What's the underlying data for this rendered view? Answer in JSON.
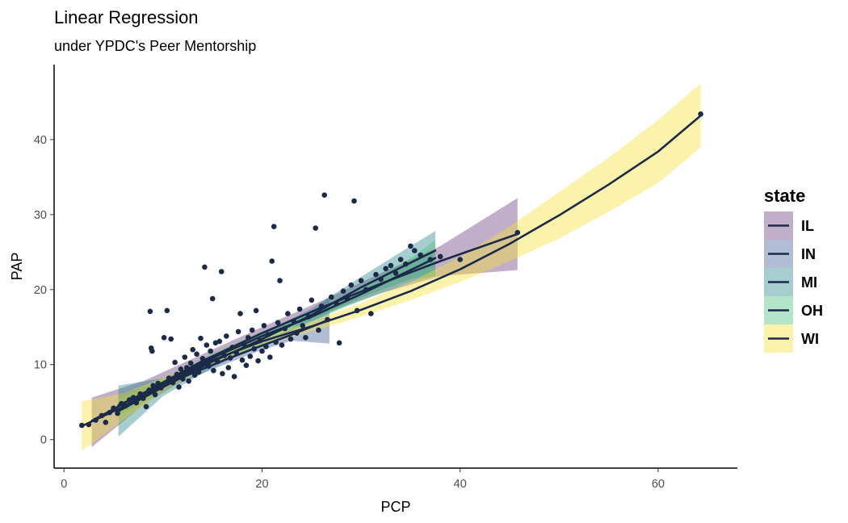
{
  "chart_data": {
    "type": "scatter",
    "title": "Linear Regression",
    "subtitle": "under YPDC's Peer Mentorship",
    "xlabel": "PCP",
    "ylabel": "PAP",
    "xlim": [
      -1,
      68
    ],
    "ylim": [
      -3.8,
      50
    ],
    "x_ticks": [
      0,
      20,
      40,
      60
    ],
    "y_ticks": [
      0,
      10,
      20,
      30,
      40
    ],
    "grid": false,
    "legend": {
      "title": "state",
      "position": "right"
    },
    "point_color": "#1c2a4a",
    "line_color": "#1c2a4a",
    "series": [
      {
        "name": "IL",
        "band_color": "#6b3d7e",
        "curve": [
          [
            2.8,
            2.5
          ],
          [
            8,
            6.2
          ],
          [
            14,
            10.5
          ],
          [
            20,
            14.2
          ],
          [
            26,
            17.6
          ],
          [
            32,
            20.8
          ],
          [
            38,
            23.8
          ],
          [
            45.8,
            27.4
          ]
        ],
        "band": [
          [
            2.8,
            -1,
            5.6
          ],
          [
            8,
            4.6,
            7.8
          ],
          [
            14,
            9.6,
            11.4
          ],
          [
            20,
            13.4,
            15.0
          ],
          [
            26,
            16.7,
            18.5
          ],
          [
            32,
            19.5,
            22.2
          ],
          [
            38,
            21.8,
            25.8
          ],
          [
            45.8,
            22.6,
            32.2
          ]
        ]
      },
      {
        "name": "IN",
        "band_color": "#45619a",
        "curve": [
          [
            5.5,
            4.6
          ],
          [
            9,
            6.6
          ],
          [
            12.5,
            8.6
          ],
          [
            16,
            10.5
          ],
          [
            19.5,
            12.3
          ],
          [
            23,
            14.0
          ],
          [
            26.8,
            16.0
          ]
        ],
        "band": [
          [
            5.5,
            3.2,
            6.0
          ],
          [
            9,
            5.8,
            7.4
          ],
          [
            12.5,
            8.0,
            9.2
          ],
          [
            16,
            9.9,
            11.1
          ],
          [
            19.5,
            11.7,
            12.9
          ],
          [
            23,
            13.2,
            14.8
          ],
          [
            26.8,
            12.8,
            19.0
          ]
        ]
      },
      {
        "name": "MI",
        "band_color": "#2d8a8a",
        "curve": [
          [
            5.5,
            3.8
          ],
          [
            10,
            7.0
          ],
          [
            15,
            10.4
          ],
          [
            20,
            13.4
          ],
          [
            25,
            16.6
          ],
          [
            30,
            20.3
          ],
          [
            35,
            23.6
          ],
          [
            37.5,
            25.2
          ]
        ],
        "band": [
          [
            5.5,
            0.4,
            7.2
          ],
          [
            10,
            5.8,
            8.2
          ],
          [
            15,
            9.6,
            11.2
          ],
          [
            20,
            12.7,
            14.1
          ],
          [
            25,
            15.7,
            17.5
          ],
          [
            30,
            18.9,
            21.7
          ],
          [
            35,
            21.4,
            25.8
          ],
          [
            37.5,
            21.8,
            27.8
          ]
        ]
      },
      {
        "name": "OH",
        "band_color": "#4fc27c",
        "curve": [
          [
            5.5,
            4.0
          ],
          [
            10,
            7.4
          ],
          [
            15,
            10.9
          ],
          [
            20,
            13.8
          ],
          [
            25,
            16.4
          ],
          [
            30,
            19.4
          ],
          [
            35,
            22.6
          ],
          [
            37.5,
            24.2
          ]
        ],
        "band": [
          [
            5.5,
            2.6,
            5.4
          ],
          [
            10,
            6.7,
            8.1
          ],
          [
            15,
            10.3,
            11.5
          ],
          [
            20,
            13.2,
            14.4
          ],
          [
            25,
            15.8,
            17.0
          ],
          [
            30,
            18.5,
            20.3
          ],
          [
            35,
            21.0,
            24.2
          ],
          [
            37.5,
            21.8,
            26.6
          ]
        ]
      },
      {
        "name": "WI",
        "band_color": "#f5e23a",
        "curve": [
          [
            1.8,
            1.8
          ],
          [
            6,
            4.4
          ],
          [
            10,
            7.3
          ],
          [
            15,
            10.6
          ],
          [
            20,
            13.1
          ],
          [
            25,
            15.1
          ],
          [
            30,
            17.3
          ],
          [
            35,
            19.8
          ],
          [
            40,
            22.7
          ],
          [
            45,
            26.1
          ],
          [
            50,
            29.9
          ],
          [
            55,
            34.0
          ],
          [
            60,
            38.4
          ],
          [
            64.3,
            43.2
          ]
        ],
        "band": [
          [
            1.8,
            -1.5,
            5.1
          ],
          [
            6,
            2.6,
            6.2
          ],
          [
            10,
            6.4,
            8.2
          ],
          [
            15,
            10.0,
            11.2
          ],
          [
            20,
            12.6,
            13.6
          ],
          [
            25,
            14.4,
            15.8
          ],
          [
            30,
            16.4,
            18.2
          ],
          [
            35,
            18.6,
            21.0
          ],
          [
            40,
            21.0,
            24.4
          ],
          [
            45,
            23.8,
            28.4
          ],
          [
            50,
            26.8,
            33.0
          ],
          [
            55,
            30.4,
            37.6
          ],
          [
            60,
            34.2,
            42.6
          ],
          [
            64.3,
            39.0,
            47.5
          ]
        ]
      }
    ],
    "points": [
      [
        1.8,
        1.9
      ],
      [
        2.5,
        2.0
      ],
      [
        3.2,
        2.6
      ],
      [
        3.8,
        3.2
      ],
      [
        4.2,
        2.3
      ],
      [
        4.6,
        3.6
      ],
      [
        5.0,
        4.2
      ],
      [
        5.4,
        3.5
      ],
      [
        5.8,
        4.8
      ],
      [
        6.2,
        4.5
      ],
      [
        6.6,
        5.3
      ],
      [
        7.0,
        5.6
      ],
      [
        7.3,
        4.9
      ],
      [
        7.7,
        6.1
      ],
      [
        8.0,
        5.5
      ],
      [
        8.3,
        4.4
      ],
      [
        8.6,
        6.6
      ],
      [
        8.7,
        17.1
      ],
      [
        8.8,
        12.2
      ],
      [
        8.9,
        11.8
      ],
      [
        9.0,
        7.2
      ],
      [
        9.2,
        6.0
      ],
      [
        9.5,
        7.5
      ],
      [
        9.8,
        6.9
      ],
      [
        10.1,
        13.6
      ],
      [
        10.4,
        17.2
      ],
      [
        10.6,
        8.2
      ],
      [
        10.8,
        13.4
      ],
      [
        11.0,
        7.6
      ],
      [
        11.2,
        10.3
      ],
      [
        11.4,
        8.7
      ],
      [
        11.6,
        7.0
      ],
      [
        11.8,
        9.4
      ],
      [
        12.0,
        8.1
      ],
      [
        12.2,
        11.0
      ],
      [
        12.4,
        9.6
      ],
      [
        12.6,
        7.8
      ],
      [
        12.8,
        10.2
      ],
      [
        13.0,
        12.0
      ],
      [
        13.2,
        8.6
      ],
      [
        13.4,
        11.4
      ],
      [
        13.6,
        9.0
      ],
      [
        13.8,
        13.5
      ],
      [
        14.0,
        10.8
      ],
      [
        14.2,
        23.0
      ],
      [
        14.4,
        12.6
      ],
      [
        14.6,
        9.8
      ],
      [
        14.8,
        11.8
      ],
      [
        15.0,
        18.8
      ],
      [
        15.1,
        9.2
      ],
      [
        15.3,
        12.9
      ],
      [
        15.5,
        10.4
      ],
      [
        15.7,
        13.1
      ],
      [
        15.9,
        22.4
      ],
      [
        16.0,
        8.8
      ],
      [
        16.2,
        11.2
      ],
      [
        16.4,
        13.8
      ],
      [
        16.6,
        9.6
      ],
      [
        16.8,
        10.9
      ],
      [
        17.0,
        12.3
      ],
      [
        17.2,
        8.4
      ],
      [
        17.4,
        11.6
      ],
      [
        17.6,
        14.4
      ],
      [
        17.8,
        16.8
      ],
      [
        18.0,
        10.6
      ],
      [
        18.2,
        12.7
      ],
      [
        18.4,
        9.9
      ],
      [
        18.6,
        13.6
      ],
      [
        18.8,
        11.1
      ],
      [
        19.0,
        14.6
      ],
      [
        19.2,
        12.1
      ],
      [
        19.4,
        17.2
      ],
      [
        19.6,
        10.5
      ],
      [
        19.8,
        13.2
      ],
      [
        20.0,
        11.8
      ],
      [
        20.2,
        15.2
      ],
      [
        20.4,
        12.4
      ],
      [
        20.6,
        14.0
      ],
      [
        20.8,
        11.0
      ],
      [
        21.0,
        23.8
      ],
      [
        21.2,
        28.4
      ],
      [
        21.4,
        13.0
      ],
      [
        21.6,
        15.6
      ],
      [
        21.8,
        21.2
      ],
      [
        22.0,
        12.6
      ],
      [
        22.3,
        14.8
      ],
      [
        22.6,
        16.8
      ],
      [
        22.9,
        13.4
      ],
      [
        23.2,
        15.8
      ],
      [
        23.5,
        14.2
      ],
      [
        23.8,
        17.4
      ],
      [
        24.1,
        15.2
      ],
      [
        24.4,
        13.6
      ],
      [
        24.7,
        16.4
      ],
      [
        25.0,
        18.6
      ],
      [
        25.4,
        28.2
      ],
      [
        25.7,
        14.6
      ],
      [
        26.0,
        17.8
      ],
      [
        26.3,
        32.6
      ],
      [
        26.6,
        16.0
      ],
      [
        27.0,
        19.0
      ],
      [
        27.5,
        18.2
      ],
      [
        27.8,
        12.9
      ],
      [
        28.2,
        19.8
      ],
      [
        28.6,
        18.8
      ],
      [
        29.0,
        20.6
      ],
      [
        29.3,
        31.8
      ],
      [
        29.6,
        17.2
      ],
      [
        30.0,
        21.2
      ],
      [
        30.5,
        20.0
      ],
      [
        31.0,
        16.8
      ],
      [
        31.5,
        22.0
      ],
      [
        32.0,
        21.4
      ],
      [
        32.5,
        22.8
      ],
      [
        33.0,
        23.2
      ],
      [
        33.5,
        22.2
      ],
      [
        34.0,
        24.0
      ],
      [
        34.5,
        23.4
      ],
      [
        35.0,
        25.8
      ],
      [
        35.4,
        25.2
      ],
      [
        36.0,
        24.6
      ],
      [
        37.0,
        24.0
      ],
      [
        38.0,
        24.4
      ],
      [
        40.0,
        24.0
      ],
      [
        45.8,
        27.6
      ],
      [
        64.3,
        43.4
      ]
    ]
  }
}
